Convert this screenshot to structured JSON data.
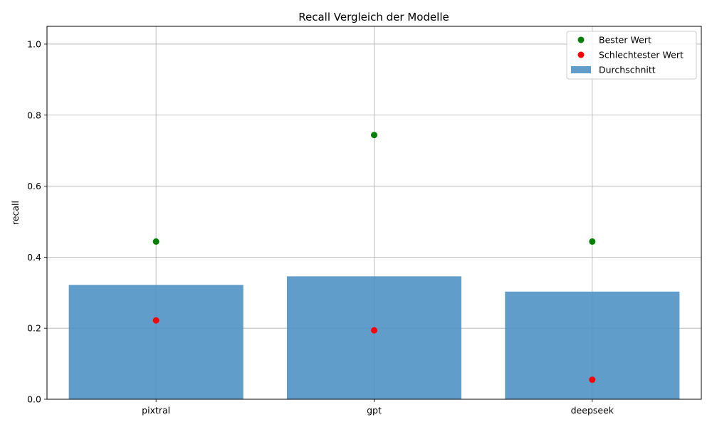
{
  "chart_data": {
    "type": "bar",
    "title": "Recall Vergleich der Modelle",
    "xlabel": "",
    "ylabel": "recall",
    "categories": [
      "pixtral",
      "gpt",
      "deepseek"
    ],
    "ylim": [
      0,
      1.05
    ],
    "yticks": [
      "0.0",
      "0.2",
      "0.4",
      "0.6",
      "0.8",
      "1.0"
    ],
    "grid": true,
    "legend_position": "top-right",
    "series": [
      {
        "name": "Durchschnitt",
        "kind": "bar",
        "color": "#4a90c4",
        "values": [
          0.322,
          0.346,
          0.303
        ]
      },
      {
        "name": "Bester Wert",
        "kind": "scatter",
        "color": "#008000",
        "values": [
          0.444,
          0.744,
          0.444
        ]
      },
      {
        "name": "Schlechtester Wert",
        "kind": "scatter",
        "color": "#ff0000",
        "values": [
          0.222,
          0.194,
          0.055
        ]
      }
    ],
    "legend_order": [
      "Bester Wert",
      "Schlechtester Wert",
      "Durchschnitt"
    ]
  }
}
